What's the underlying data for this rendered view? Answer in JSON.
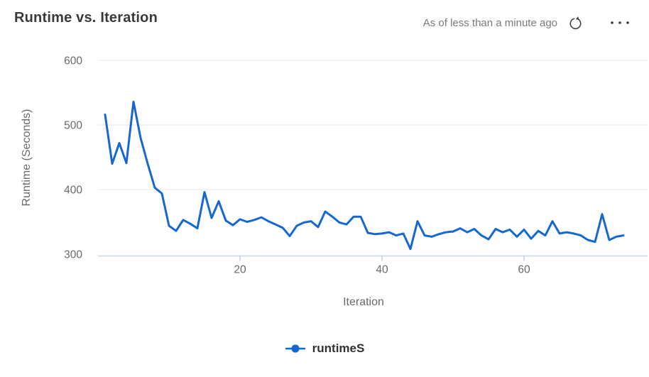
{
  "header": {
    "title": "Runtime vs. Iteration",
    "as_of_text": "As of less than a minute ago"
  },
  "icons": {
    "refresh": "refresh-circular-arrow",
    "more_options": "horizontal-ellipsis"
  },
  "colors": {
    "series_blue": "#1568d2",
    "title_text": "#3a3a3a",
    "muted_text": "#7c7a78",
    "axis_text": "#6a6a6a",
    "gridline": "#ececec",
    "axis_line": "#c9d4ea",
    "icon_dark": "#404040"
  },
  "chart_data": {
    "type": "line",
    "title": "Runtime vs. Iteration",
    "xlabel": "Iteration",
    "ylabel": "Runtime (Seconds)",
    "xlim": [
      0,
      76
    ],
    "ylim": [
      300,
      600
    ],
    "xticks": [
      20,
      40,
      60
    ],
    "yticks": [
      300,
      400,
      500,
      600
    ],
    "grid": "horizontal",
    "legend_position": "bottom-center",
    "series": [
      {
        "name": "runtimeS",
        "color": "#1568d2",
        "x_start": 1,
        "x_step": 1,
        "values": [
          516,
          440,
          472,
          441,
          536,
          480,
          440,
          403,
          394,
          344,
          336,
          353,
          347,
          340,
          396,
          356,
          382,
          352,
          345,
          354,
          350,
          353,
          357,
          351,
          346,
          341,
          328,
          344,
          349,
          351,
          342,
          366,
          358,
          349,
          346,
          358,
          358,
          333,
          331,
          332,
          334,
          329,
          332,
          308,
          351,
          329,
          327,
          331,
          334,
          335,
          340,
          334,
          339,
          329,
          323,
          339,
          334,
          338,
          327,
          338,
          324,
          336,
          329,
          351,
          332,
          334,
          332,
          329,
          322,
          319,
          362,
          322,
          327,
          329
        ]
      }
    ]
  }
}
